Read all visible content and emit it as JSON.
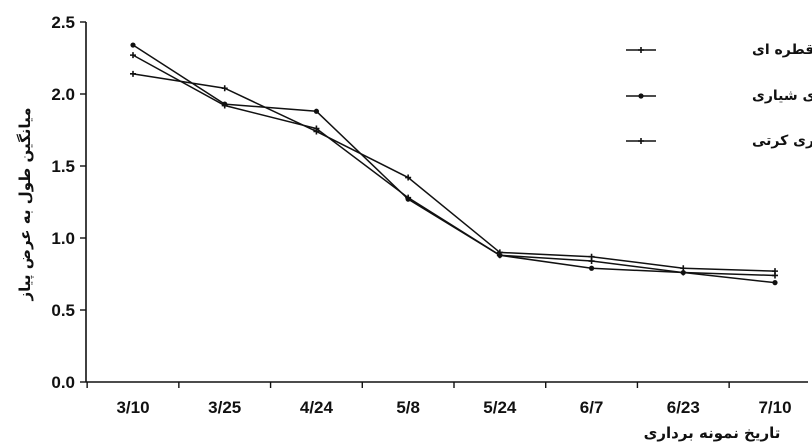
{
  "chart_data": {
    "type": "line",
    "title": "",
    "xlabel": "تاریخ نمونه برداری",
    "ylabel": "میانگین طول به عرض پیاز",
    "categories": [
      "3/10",
      "3/25",
      "4/24",
      "5/8",
      "5/24",
      "6/7",
      "6/23",
      "7/10"
    ],
    "ylim": [
      0,
      2.5
    ],
    "yticks": [
      "0.0",
      "0.5",
      "1.0",
      "1.5",
      "2.0",
      "2.5"
    ],
    "grid": false,
    "legend_position": "top-right",
    "series": [
      {
        "name": "آبیاری قطره ای",
        "marker": "plus",
        "values": [
          2.14,
          2.04,
          1.74,
          1.42,
          0.9,
          0.87,
          0.79,
          0.77
        ]
      },
      {
        "name": "آبیاری شیاری",
        "marker": "dot",
        "values": [
          2.34,
          1.93,
          1.88,
          1.27,
          0.88,
          0.79,
          0.76,
          0.69
        ]
      },
      {
        "name": "آبیاری کرتی",
        "marker": "plus",
        "values": [
          2.27,
          1.92,
          1.76,
          1.28,
          0.88,
          0.84,
          0.76,
          0.74
        ]
      }
    ]
  }
}
